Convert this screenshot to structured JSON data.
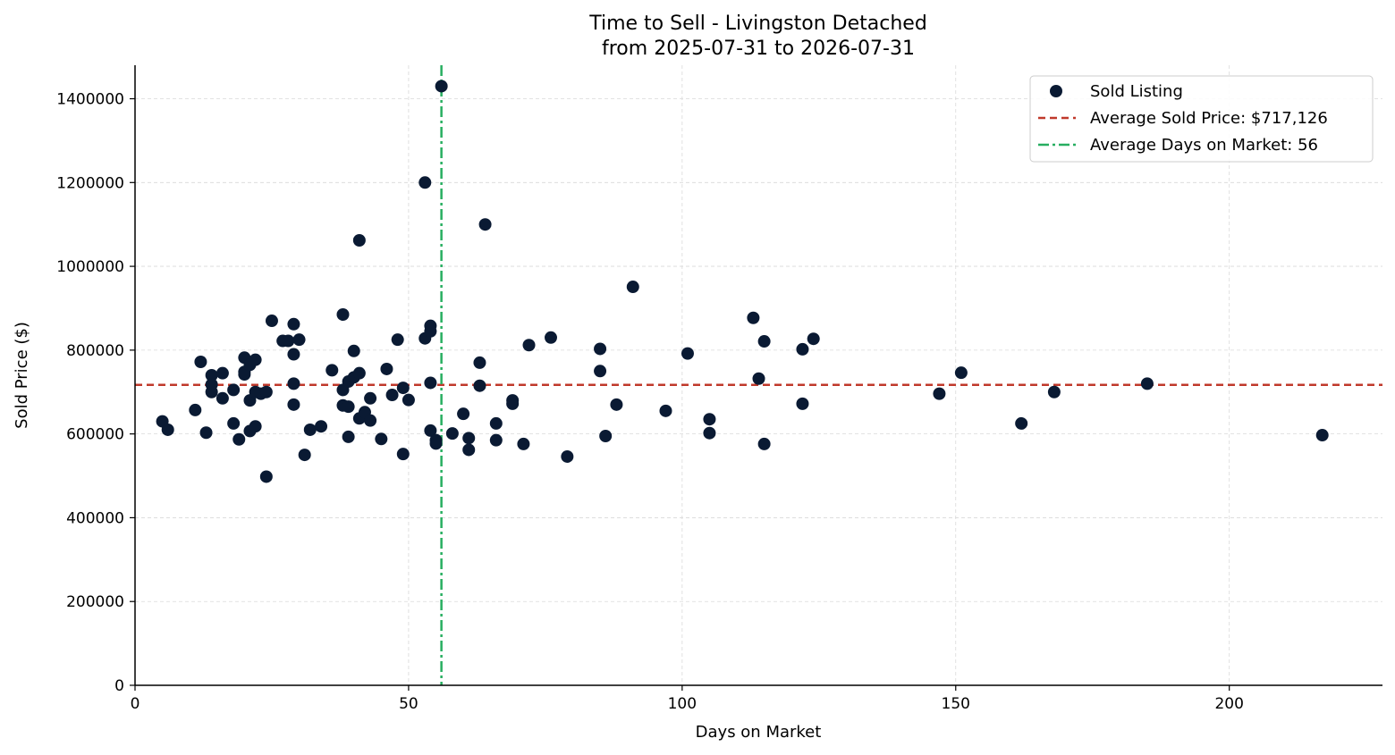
{
  "chart_data": {
    "type": "scatter",
    "title": "Time to Sell - Livingston Detached",
    "subtitle": "from 2025-07-31 to 2026-07-31",
    "xlabel": "Days on Market",
    "ylabel": "Sold Price ($)",
    "xlim": [
      0,
      228
    ],
    "ylim": [
      0,
      1480000
    ],
    "xticks": [
      0,
      50,
      100,
      150,
      200
    ],
    "yticks": [
      0,
      200000,
      400000,
      600000,
      800000,
      1000000,
      1200000,
      1400000
    ],
    "xtick_labels": [
      "0",
      "50",
      "100",
      "150",
      "200"
    ],
    "ytick_labels": [
      "0",
      "200000",
      "400000",
      "600000",
      "800000",
      "1000000",
      "1200000",
      "1400000"
    ],
    "grid": true,
    "legend_position": "top-right",
    "colors": {
      "points": "#0a1a33",
      "avg_price_line": "#c0392b",
      "avg_days_line": "#27ae60",
      "grid": "#d9d9d9",
      "axis": "#000000"
    },
    "series": [
      {
        "name": "Sold Listing",
        "x": [
          5,
          6,
          11,
          12,
          13,
          14,
          14,
          14,
          16,
          16,
          18,
          18,
          19,
          20,
          20,
          20,
          21,
          21,
          21,
          22,
          22,
          22,
          23,
          24,
          24,
          25,
          27,
          28,
          29,
          29,
          29,
          29,
          30,
          31,
          32,
          34,
          36,
          38,
          38,
          38,
          39,
          39,
          39,
          40,
          40,
          41,
          41,
          41,
          42,
          43,
          43,
          45,
          46,
          47,
          48,
          49,
          49,
          50,
          53,
          53,
          54,
          54,
          54,
          54,
          55,
          55,
          56,
          58,
          60,
          61,
          61,
          63,
          63,
          64,
          66,
          66,
          69,
          69,
          71,
          72,
          76,
          79,
          85,
          85,
          86,
          88,
          91,
          97,
          101,
          105,
          105,
          113,
          114,
          115,
          115,
          122,
          122,
          124,
          147,
          151,
          162,
          168,
          185,
          217
        ],
        "y": [
          630000,
          610000,
          657000,
          772000,
          603000,
          740000,
          718000,
          700000,
          745000,
          685000,
          705000,
          625000,
          587000,
          782000,
          748000,
          742000,
          765000,
          680000,
          607000,
          777000,
          700000,
          618000,
          696000,
          700000,
          498000,
          870000,
          822000,
          822000,
          862000,
          790000,
          720000,
          670000,
          825000,
          550000,
          610000,
          618000,
          752000,
          885000,
          705000,
          668000,
          725000,
          665000,
          593000,
          798000,
          735000,
          1062000,
          745000,
          637000,
          652000,
          685000,
          632000,
          588000,
          755000,
          693000,
          825000,
          710000,
          552000,
          681000,
          1200000,
          828000,
          858000,
          845000,
          722000,
          608000,
          585000,
          577000,
          1430000,
          601000,
          648000,
          590000,
          562000,
          770000,
          715000,
          1100000,
          625000,
          585000,
          680000,
          672000,
          576000,
          812000,
          830000,
          546000,
          803000,
          750000,
          595000,
          670000,
          951000,
          655000,
          792000,
          635000,
          602000,
          877000,
          732000,
          821000,
          576000,
          802000,
          672000,
          827000,
          696000,
          746000,
          625000,
          700000,
          720000,
          597000
        ]
      }
    ],
    "reference_lines": [
      {
        "name": "Average Sold Price: $717,126",
        "orientation": "horizontal",
        "value": 717126,
        "style": "dashed"
      },
      {
        "name": "Average Days on Market: 56",
        "orientation": "vertical",
        "value": 56,
        "style": "dashdot"
      }
    ]
  }
}
